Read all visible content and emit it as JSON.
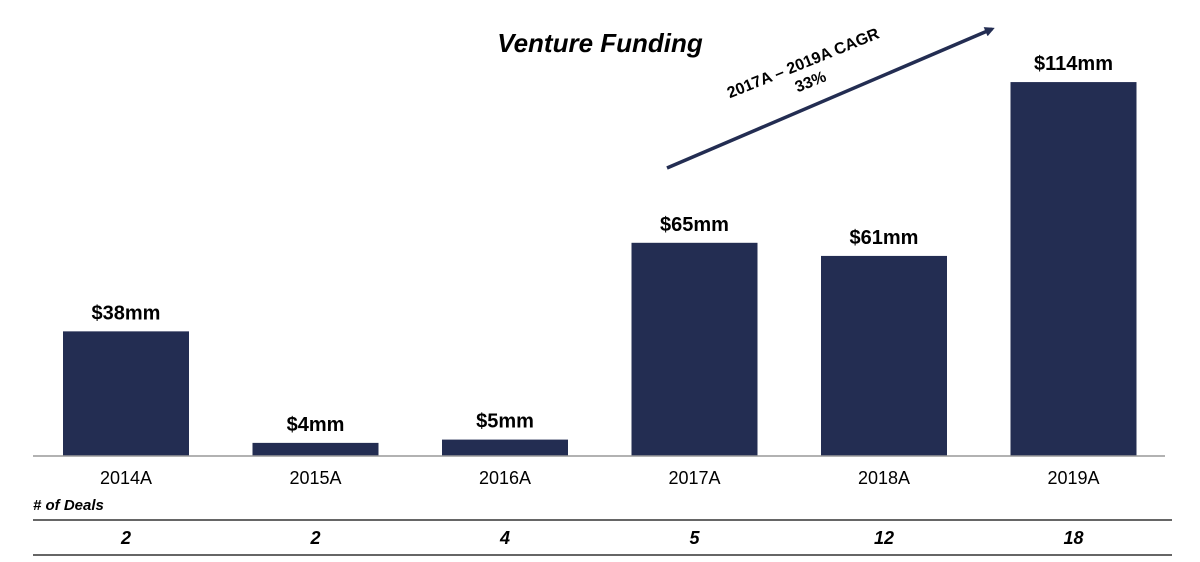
{
  "chart_data": {
    "type": "bar",
    "title": "Venture Funding",
    "categories": [
      "2014A",
      "2015A",
      "2016A",
      "2017A",
      "2018A",
      "2019A"
    ],
    "values": [
      38,
      4,
      5,
      65,
      61,
      114
    ],
    "value_labels": [
      "$38mm",
      "$4mm",
      "$5mm",
      "$65mm",
      "$61mm",
      "$114mm"
    ],
    "ylim": [
      0,
      125
    ],
    "grid": false,
    "bar_color": "#232D52",
    "annotation": {
      "line1": "2017A – 2019A CAGR",
      "line2": "33%",
      "arrow_color": "#232D52"
    },
    "deals": {
      "label": "# of Deals",
      "values": [
        "2",
        "2",
        "4",
        "5",
        "12",
        "18"
      ]
    }
  }
}
